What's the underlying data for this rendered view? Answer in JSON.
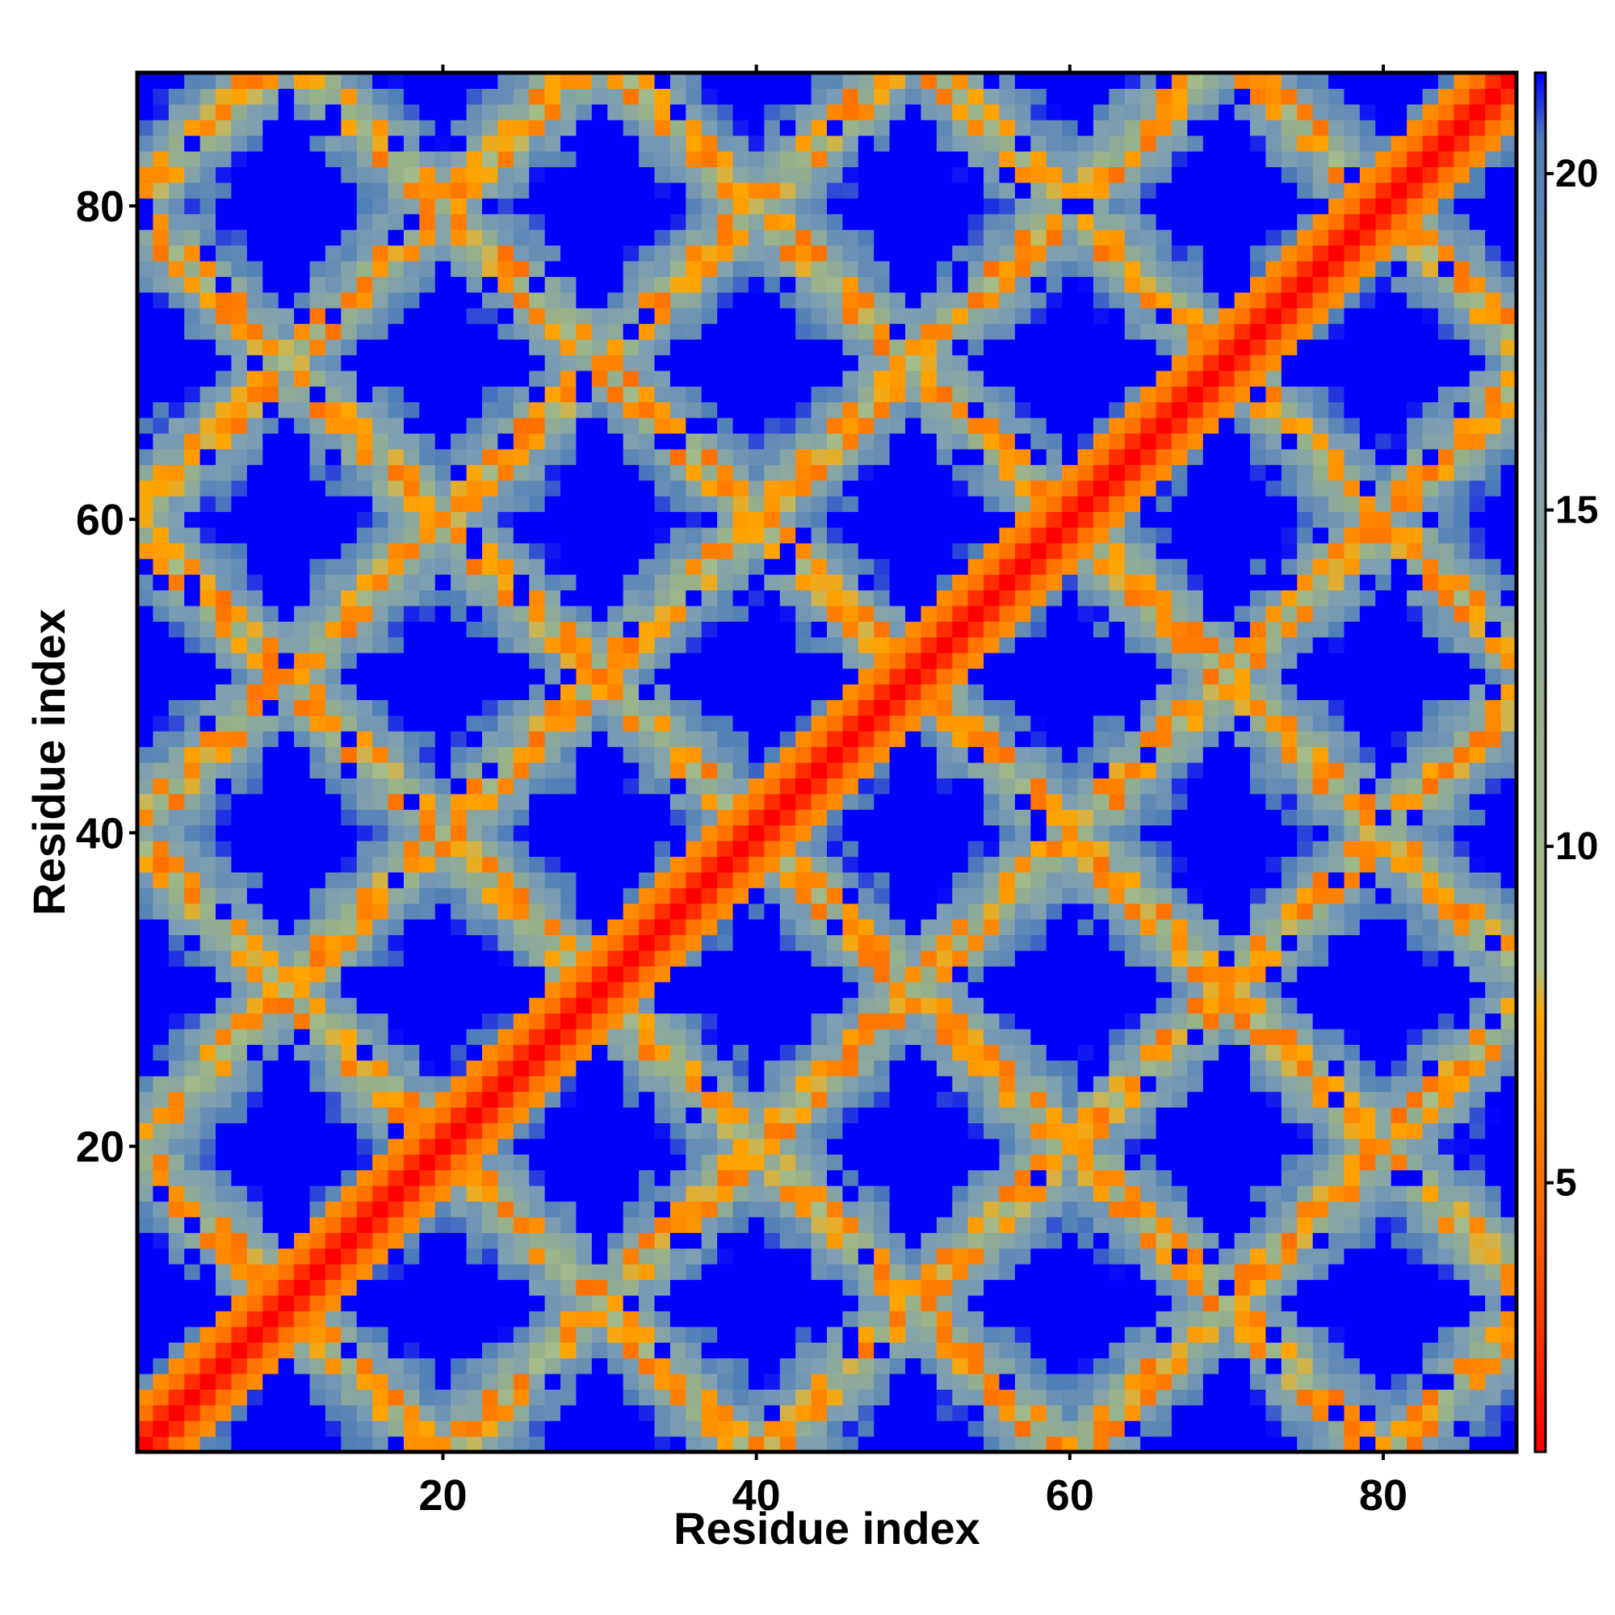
{
  "chart_data": {
    "type": "heatmap",
    "description_of_values": "",
    "x": {
      "min": 1,
      "max": 88
    },
    "y": {
      "min": 1,
      "max": 88
    },
    "xlabel": "Residue index",
    "ylabel": "Residue index",
    "xticks": [
      20,
      40,
      60,
      80
    ],
    "yticks": [
      20,
      40,
      60,
      80
    ],
    "colorbar": {
      "range": [
        1,
        21.5
      ],
      "ticks": [
        5,
        10,
        15,
        20
      ],
      "stops": [
        {
          "value": 1,
          "color": "#ff0000"
        },
        {
          "value": 4.0,
          "color": "#ff5a00"
        },
        {
          "value": 7.5,
          "color": "#ffa500"
        },
        {
          "value": 8.2,
          "color": "#a9bf8a"
        },
        {
          "value": 12,
          "color": "#96b08a"
        },
        {
          "value": 16,
          "color": "#7f9fb2"
        },
        {
          "value": 20.5,
          "color": "#4f7fb8"
        },
        {
          "value": 21.5,
          "color": "#0000ff"
        }
      ]
    },
    "cutoff_color": "#0000ff",
    "pattern": {
      "diagonal": "red band along i = j",
      "antidiagonal_bands": "orange contact bands, period about 20 residues",
      "far_regions": "blue (above cutoff) diamond-shaped patches"
    }
  },
  "axes_text": {
    "xlabel": "Residue index",
    "ylabel": "Residue index",
    "xtick_labels": [
      "20",
      "40",
      "60",
      "80"
    ],
    "ytick_labels": [
      "20",
      "40",
      "60",
      "80"
    ],
    "colorbar_tick_labels": [
      "5",
      "10",
      "15",
      "20"
    ]
  }
}
